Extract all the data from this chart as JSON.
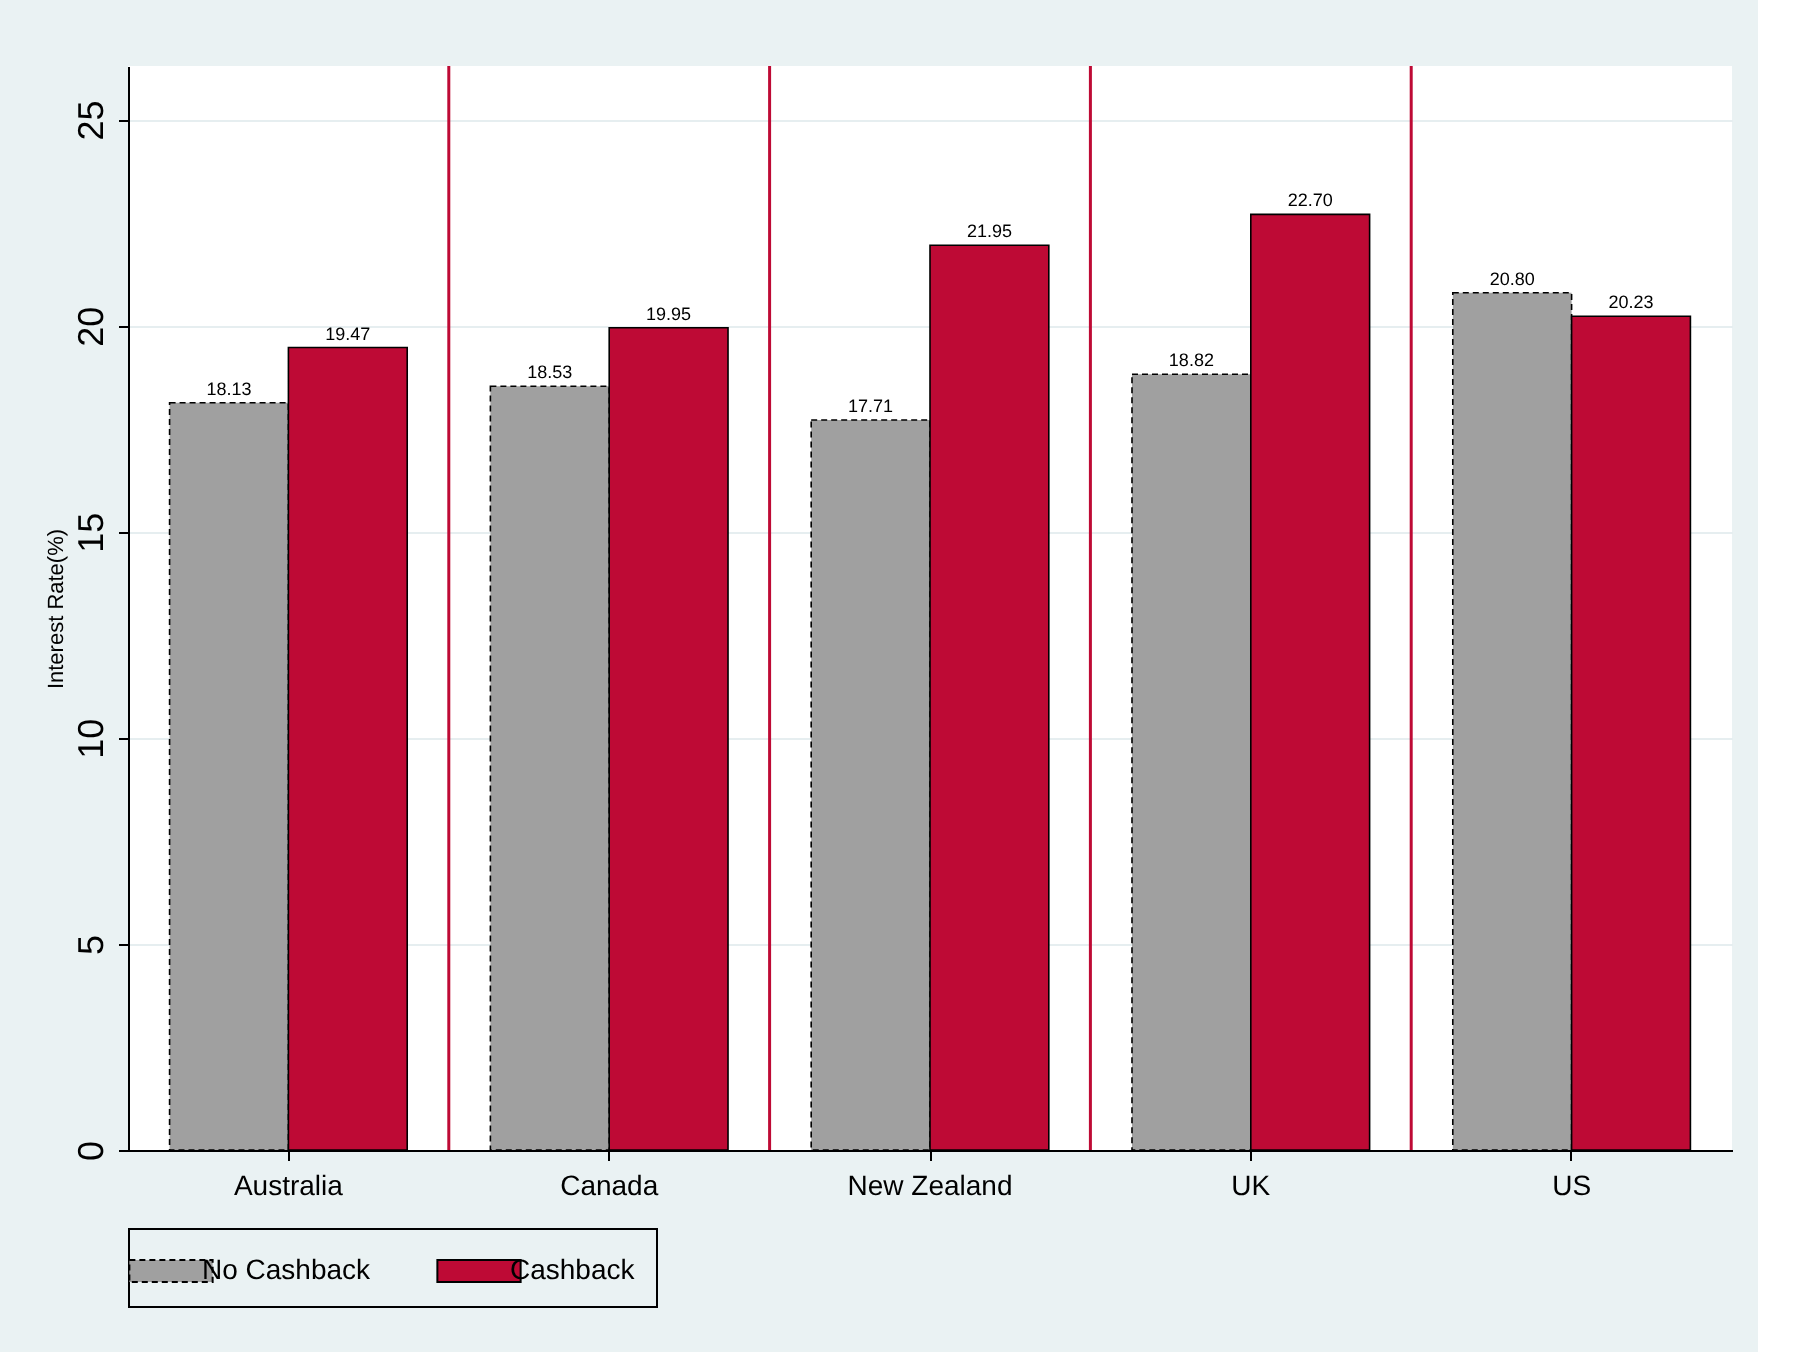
{
  "chart_data": {
    "type": "bar",
    "ylabel": "Interest Rate(%)",
    "categories": [
      "Australia",
      "Canada",
      "New Zealand",
      "UK",
      "US"
    ],
    "series": [
      {
        "name": "No Cashback",
        "color": "#a0a0a0",
        "line_style": "dashed",
        "values": [
          18.13,
          18.53,
          17.71,
          18.82,
          20.8
        ],
        "value_labels": [
          "18.13",
          "18.53",
          "17.71",
          "18.82",
          "20.80"
        ]
      },
      {
        "name": "Cashback",
        "color": "#be0a35",
        "line_style": "solid",
        "values": [
          19.47,
          19.95,
          21.95,
          22.7,
          20.23
        ],
        "value_labels": [
          "19.47",
          "19.95",
          "21.95",
          "22.70",
          "20.23"
        ]
      }
    ],
    "ylim": [
      0,
      26.3
    ],
    "yticks": [
      0,
      5,
      10,
      15,
      20,
      25
    ],
    "grid": "y",
    "legend": "bottom"
  }
}
